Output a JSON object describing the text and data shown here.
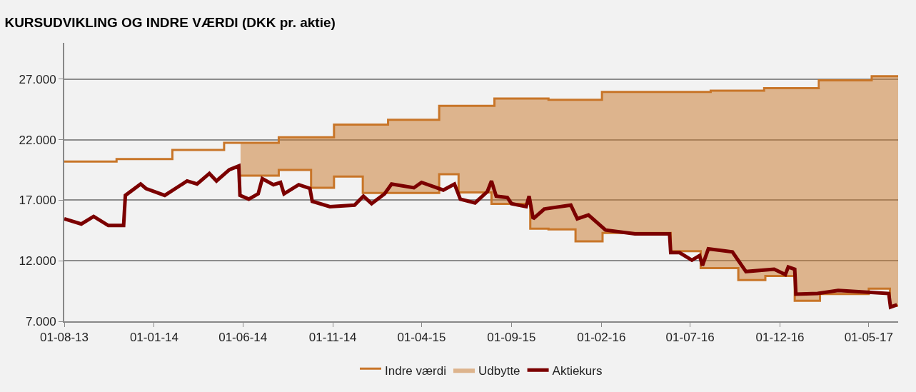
{
  "chart_data": {
    "type": "line",
    "title": "KURSUDVIKLING OG INDRE VÆRDI (DKK pr. aktie)",
    "series": [
      {
        "name": "Indre værdi",
        "type": "step",
        "color": "#c87528",
        "x": [
          "2013-08-01",
          "2013-10-29",
          "2014-02-01",
          "2014-04-30",
          "2014-08-01",
          "2014-11-03",
          "2015-02-03",
          "2015-05-01",
          "2015-08-03",
          "2015-11-03",
          "2016-02-02",
          "2016-08-05",
          "2016-11-04",
          "2017-02-05",
          "2017-05-06",
          "2017-06-20"
        ],
        "values": [
          20200,
          20400,
          21150,
          21750,
          22200,
          23250,
          23650,
          24800,
          25400,
          25300,
          25950,
          26050,
          26250,
          26900,
          27250,
          27250
        ]
      },
      {
        "type": "step",
        "color": "#c87528",
        "x": [
          "2014-05-28",
          "2014-08-01",
          "2014-09-25",
          "2014-11-03",
          "2014-12-22",
          "2015-02-03",
          "2015-05-01",
          "2015-06-03",
          "2015-07-29",
          "2015-08-03",
          "2015-10-03",
          "2015-11-03",
          "2015-12-19",
          "2016-02-03",
          "2016-05-29",
          "2016-07-19",
          "2016-08-05",
          "2016-09-21",
          "2016-11-06",
          "2016-12-26",
          "2017-02-07",
          "2017-05-01",
          "2017-05-06",
          "2017-06-06",
          "2017-06-20"
        ],
        "values": [
          19030,
          19500,
          18030,
          18960,
          17600,
          17600,
          19150,
          17650,
          16700,
          16700,
          14650,
          14600,
          13600,
          14300,
          12800,
          11400,
          11400,
          10400,
          10750,
          8700,
          9250,
          9700,
          9700,
          8300,
          8300
        ]
      },
      {
        "name": "Udbytte",
        "type": "area",
        "color": "#c87528",
        "x": [
          "2014-05-28",
          "2014-08-01",
          "2014-09-25",
          "2014-11-03",
          "2014-12-22",
          "2015-02-03",
          "2015-05-01",
          "2015-06-03",
          "2015-07-29",
          "2015-08-03",
          "2015-10-03",
          "2015-11-03",
          "2015-12-19",
          "2016-02-03",
          "2016-05-29",
          "2016-07-19",
          "2016-08-05",
          "2016-09-21",
          "2016-11-06",
          "2016-12-26",
          "2017-02-07",
          "2017-05-01",
          "2017-05-06",
          "2017-06-06",
          "2017-06-20"
        ],
        "values": [
          21750,
          22200,
          22200,
          23250,
          23250,
          23650,
          24800,
          24800,
          24800,
          25400,
          25400,
          25300,
          25300,
          25950,
          25950,
          25950,
          26050,
          26050,
          26250,
          26250,
          26900,
          26900,
          27250,
          27250,
          27250
        ]
      },
      {
        "name": "Aktiekurs",
        "color": "#7b0000",
        "x": [
          "2013-08-01",
          "2013-08-30",
          "2013-09-20",
          "2013-10-15",
          "2013-11-10",
          "2013-11-13",
          "2013-12-09",
          "2013-12-18",
          "2014-01-19",
          "2014-02-26",
          "2014-03-15",
          "2014-04-05",
          "2014-04-17",
          "2014-05-09",
          "2014-05-25",
          "2014-05-27",
          "2014-06-11",
          "2014-06-27",
          "2014-07-04",
          "2014-07-23",
          "2014-08-04",
          "2014-08-10",
          "2014-09-04",
          "2014-09-23",
          "2014-09-27",
          "2014-10-27",
          "2014-12-08",
          "2014-12-23",
          "2015-01-06",
          "2015-01-28",
          "2015-02-09",
          "2015-03-19",
          "2015-04-01",
          "2015-05-08",
          "2015-05-27",
          "2015-06-06",
          "2015-07-01",
          "2015-07-22",
          "2015-07-29",
          "2015-08-06",
          "2015-08-25",
          "2015-09-01",
          "2015-09-26",
          "2015-10-01",
          "2015-10-08",
          "2015-10-27",
          "2015-12-11",
          "2015-12-22",
          "2016-01-10",
          "2016-02-08",
          "2016-03-29",
          "2016-05-27",
          "2016-05-29",
          "2016-06-13",
          "2016-07-04",
          "2016-07-17",
          "2016-07-22",
          "2016-08-01",
          "2016-09-11",
          "2016-10-04",
          "2016-11-21",
          "2016-12-10",
          "2016-12-15",
          "2016-12-26",
          "2016-12-28",
          "2017-02-03",
          "2017-03-10",
          "2017-06-04",
          "2017-06-07",
          "2017-06-18"
        ],
        "values": [
          15470,
          15040,
          15660,
          14910,
          14910,
          17400,
          18340,
          17970,
          17400,
          18590,
          18340,
          19210,
          18590,
          19520,
          19830,
          17400,
          17090,
          17530,
          18780,
          18280,
          18470,
          17530,
          18280,
          17970,
          16910,
          16470,
          16600,
          17340,
          16720,
          17530,
          18340,
          18030,
          18470,
          17840,
          18340,
          17090,
          16780,
          17720,
          18590,
          17340,
          17220,
          16720,
          16470,
          17340,
          15470,
          16280,
          16600,
          15470,
          15780,
          14540,
          14230,
          14230,
          12670,
          12670,
          12050,
          12420,
          11610,
          12980,
          12730,
          11110,
          11300,
          10860,
          11490,
          11300,
          9240,
          9300,
          9550,
          9300,
          8180,
          8370
        ]
      }
    ],
    "xlim": [
      "2013-08-01",
      "2017-06-20"
    ],
    "xticks": [
      {
        "value": "2013-08-01",
        "label": "01-08-13"
      },
      {
        "value": "2014-01-01",
        "label": "01-01-14"
      },
      {
        "value": "2014-06-01",
        "label": "01-06-14"
      },
      {
        "value": "2014-11-01",
        "label": "01-11-14"
      },
      {
        "value": "2015-04-01",
        "label": "01-04-15"
      },
      {
        "value": "2015-09-01",
        "label": "01-09-15"
      },
      {
        "value": "2016-02-01",
        "label": "01-02-16"
      },
      {
        "value": "2016-07-01",
        "label": "01-07-16"
      },
      {
        "value": "2016-12-01",
        "label": "01-12-16"
      },
      {
        "value": "2017-05-01",
        "label": "01-05-17"
      }
    ],
    "ylim": [
      7000,
      30000
    ],
    "yticks": [
      {
        "value": 7000,
        "label": "7.000"
      },
      {
        "value": 12000,
        "label": "12.000"
      },
      {
        "value": 17000,
        "label": "17.000"
      },
      {
        "value": 22000,
        "label": "22.000"
      },
      {
        "value": 27000,
        "label": "27.000"
      }
    ],
    "grid": "y",
    "legend": "bottom",
    "marker": "none",
    "line_style": "solid"
  }
}
